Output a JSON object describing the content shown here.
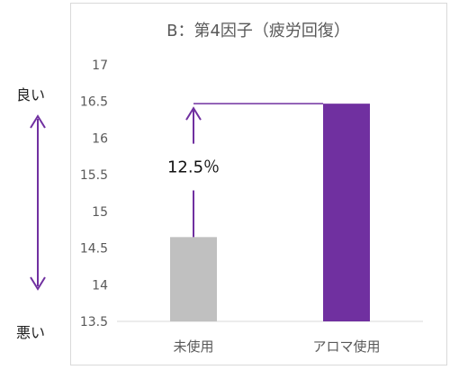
{
  "side": {
    "good": "良い",
    "bad": "悪い"
  },
  "chart_data": {
    "type": "bar",
    "title": "B：第4因子（疲労回復）",
    "categories": [
      "未使用",
      "アロマ使用"
    ],
    "values": [
      14.65,
      16.47
    ],
    "colors": [
      "#c0c0c0",
      "#7030a0"
    ],
    "ylim": [
      13.5,
      17
    ],
    "yticks": [
      13.5,
      14,
      14.5,
      15,
      15.5,
      16,
      16.5,
      17
    ],
    "grid": false,
    "annotation": {
      "text": "12.5％",
      "color": "#7030a0"
    }
  }
}
